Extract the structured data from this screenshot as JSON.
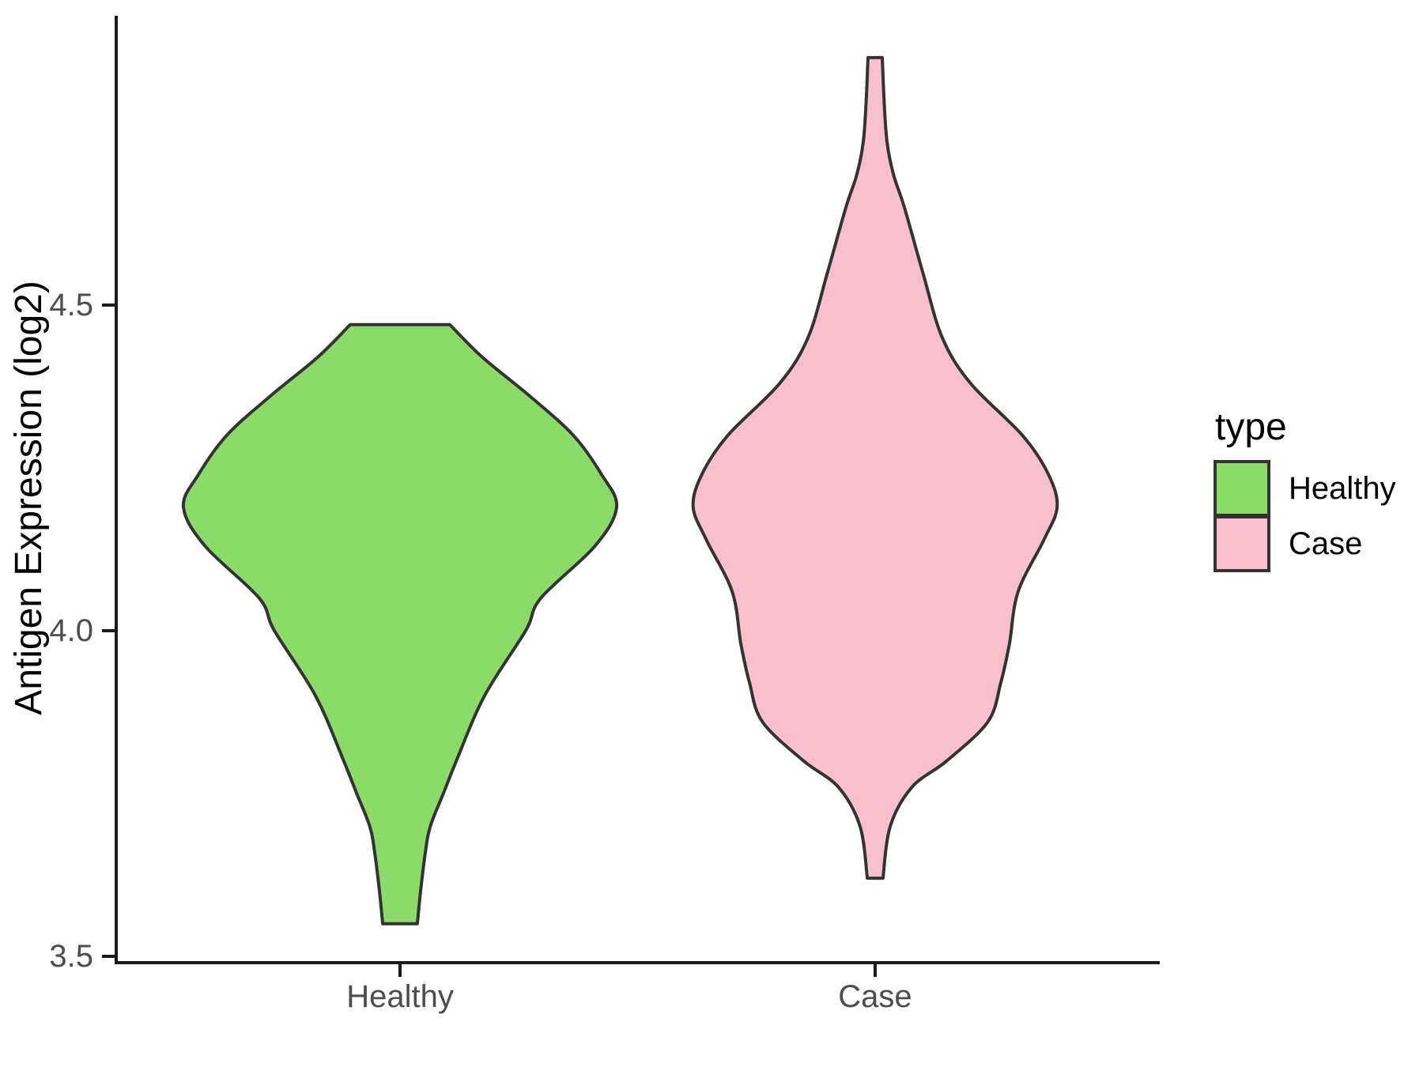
{
  "chart_data": {
    "type": "violin",
    "title": "",
    "xlabel": "",
    "ylabel": "Antigen Expression (log2)",
    "categories": [
      "Healthy",
      "Case"
    ],
    "y_ticks": [
      "3.5",
      "4.0",
      "4.5"
    ],
    "y_tick_values": [
      3.5,
      4.0,
      4.5
    ],
    "ylim": [
      3.5,
      4.94
    ],
    "grid": false,
    "legend_title": "type",
    "legend_position": "right",
    "background_color": "#ffffff",
    "axis_line_color": "#1a1a1a",
    "axis_text_color": "#4d4d4d",
    "series": [
      {
        "name": "Healthy",
        "color": "#8BDB69",
        "outline": "#333333",
        "min": 3.55,
        "max": 4.47,
        "peak_at": 4.19,
        "profile": [
          [
            4.47,
            0.23
          ],
          [
            4.42,
            0.38
          ],
          [
            4.36,
            0.6
          ],
          [
            4.3,
            0.8
          ],
          [
            4.24,
            0.93
          ],
          [
            4.19,
            1.0
          ],
          [
            4.13,
            0.9
          ],
          [
            4.05,
            0.65
          ],
          [
            4.0,
            0.58
          ],
          [
            3.9,
            0.39
          ],
          [
            3.8,
            0.26
          ],
          [
            3.75,
            0.2
          ],
          [
            3.7,
            0.14
          ],
          [
            3.66,
            0.117
          ],
          [
            3.6,
            0.095
          ],
          [
            3.55,
            0.08
          ]
        ]
      },
      {
        "name": "Case",
        "color": "#F8C0CC",
        "outline": "#333333",
        "min": 3.62,
        "max": 4.88,
        "peak_at": 4.2,
        "profile": [
          [
            4.88,
            0.033
          ],
          [
            4.81,
            0.042
          ],
          [
            4.75,
            0.055
          ],
          [
            4.7,
            0.085
          ],
          [
            4.65,
            0.135
          ],
          [
            4.55,
            0.22
          ],
          [
            4.45,
            0.31
          ],
          [
            4.38,
            0.44
          ],
          [
            4.3,
            0.68
          ],
          [
            4.24,
            0.8
          ],
          [
            4.19,
            0.84
          ],
          [
            4.14,
            0.78
          ],
          [
            4.06,
            0.66
          ],
          [
            3.98,
            0.62
          ],
          [
            3.92,
            0.58
          ],
          [
            3.86,
            0.52
          ],
          [
            3.8,
            0.33
          ],
          [
            3.76,
            0.17
          ],
          [
            3.7,
            0.07
          ],
          [
            3.62,
            0.036
          ]
        ]
      }
    ]
  }
}
